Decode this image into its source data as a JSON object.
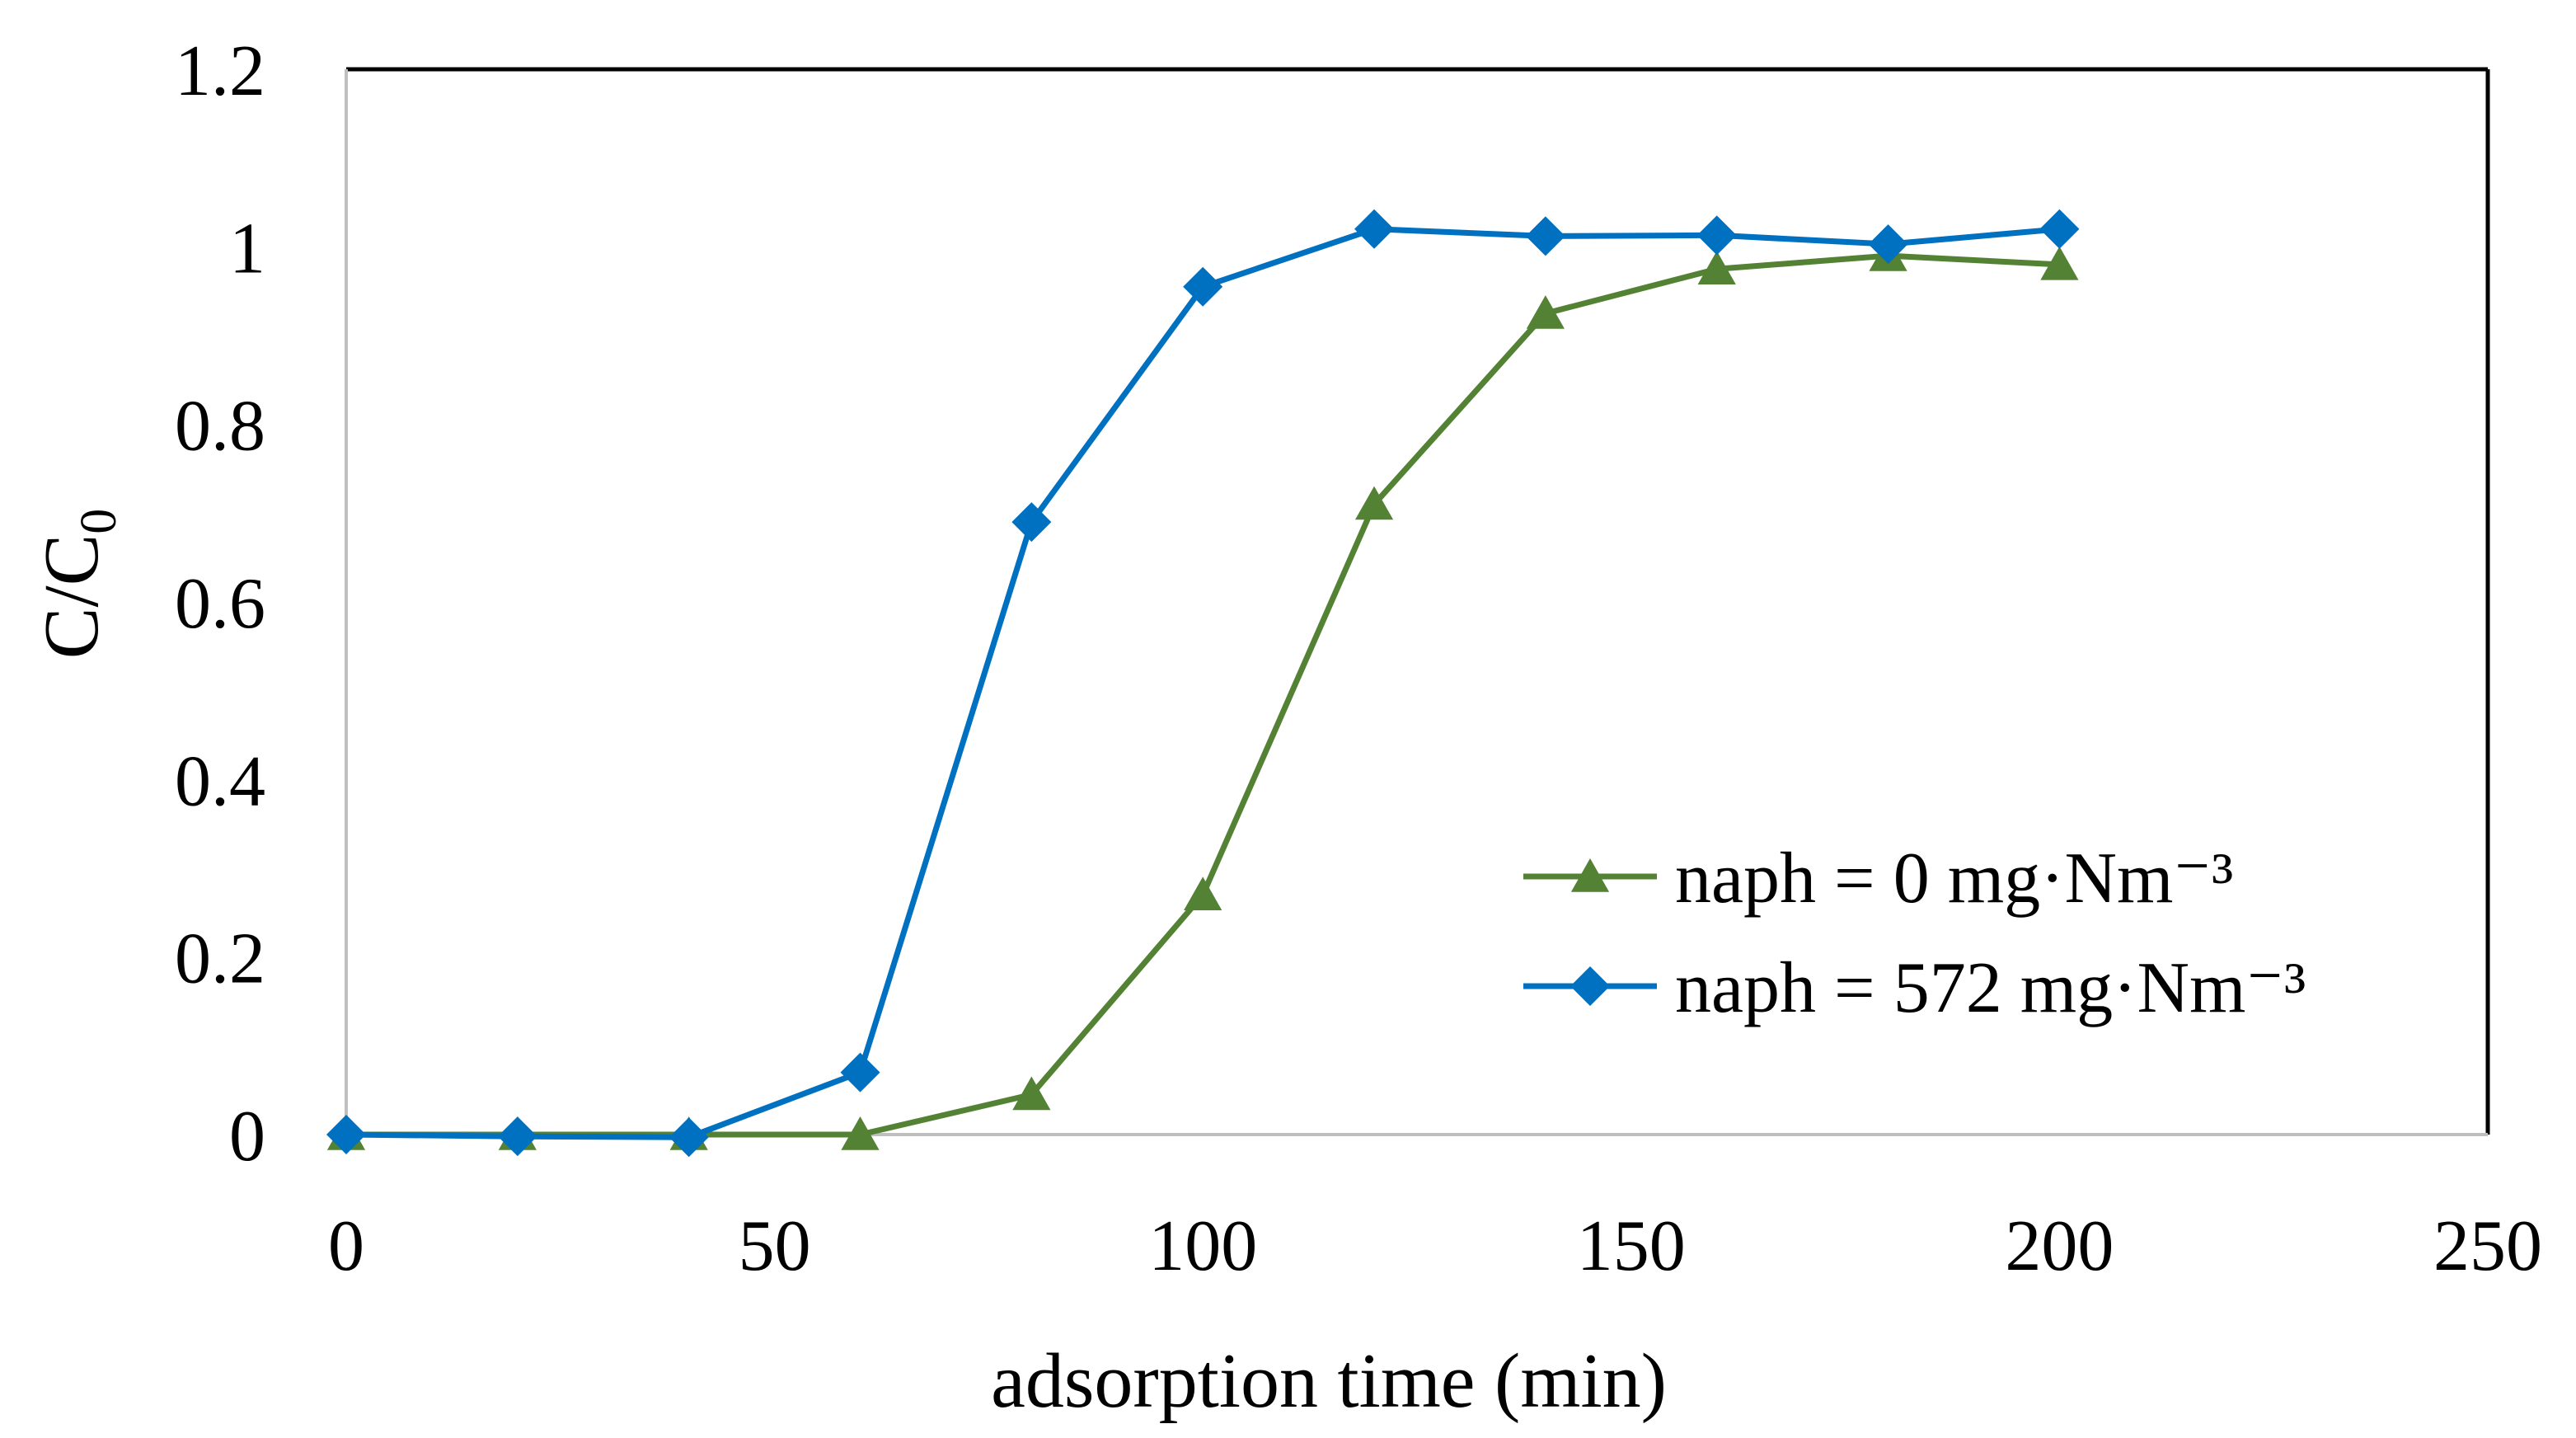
{
  "chart_data": {
    "type": "line",
    "title": "",
    "xlabel": "adsorption time (min)",
    "ylabel": {
      "main": "C/C",
      "subscript": "0"
    },
    "xlim": [
      0,
      250
    ],
    "ylim": [
      0,
      1.2
    ],
    "xticks": [
      0,
      50,
      100,
      150,
      200,
      250
    ],
    "xtick_labels": [
      "0",
      "50",
      "100",
      "150",
      "200",
      "250"
    ],
    "yticks": [
      0,
      0.2,
      0.4,
      0.6,
      0.8,
      1,
      1.2
    ],
    "ytick_labels": [
      "0",
      "0.2",
      "0.4",
      "0.6",
      "0.8",
      "1",
      "1.2"
    ],
    "grid": false,
    "legend_position": "right",
    "series": [
      {
        "name": "naph = 0 mg·Nm⁻³",
        "color": "#548235",
        "marker": "triangle",
        "x": [
          0,
          20,
          40,
          60,
          80,
          100,
          120,
          140,
          160,
          180,
          200
        ],
        "y": [
          0,
          0,
          0,
          0,
          0.045,
          0.27,
          0.71,
          0.925,
          0.975,
          0.99,
          0.98
        ]
      },
      {
        "name": "naph = 572 mg·Nm⁻³",
        "color": "#0070C0",
        "marker": "diamond",
        "x": [
          0,
          20,
          40,
          60,
          80,
          100,
          120,
          140,
          160,
          180,
          200
        ],
        "y": [
          0,
          -0.002,
          -0.003,
          0.07,
          0.69,
          0.955,
          1.02,
          1.012,
          1.013,
          1.003,
          1.02
        ]
      }
    ]
  }
}
